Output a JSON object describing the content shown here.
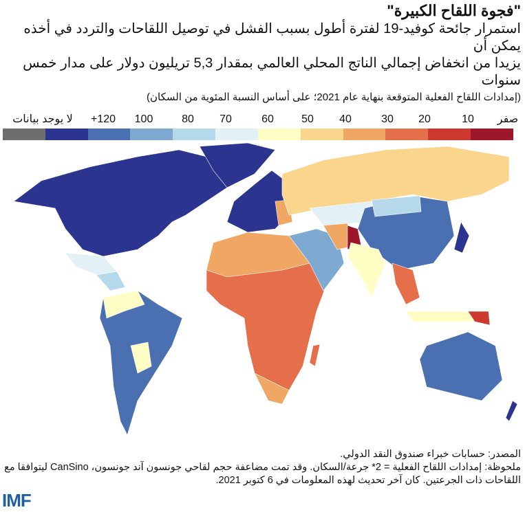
{
  "header": {
    "title": "\"فجوة اللقاح الكبيرة\"",
    "subtitle_line1": "استمرار جائحة كوفيد-19 لفترة أطول بسبب الفشل في توصيل اللقاحات والتردد في أخذه يمكن أن",
    "subtitle_line2": "يزيدا من انخفاض إجمالي الناتج المحلي العالمي بمقدار 5,3 تريليون دولار على مدار خمس سنوات",
    "unit": "(إمدادات اللقاح الفعلية المتوقعة بنهاية عام 2021؛ على أساس النسبة المئوية من السكان)"
  },
  "legend": {
    "labels": [
      "لا يوجد بيانات",
      "+120",
      "100",
      "80",
      "70",
      "60",
      "50",
      "40",
      "30",
      "20",
      "10",
      "صفر"
    ],
    "colors": [
      "#6e6e6e",
      "#2b3590",
      "#4a70b2",
      "#7eaad2",
      "#b5d9ea",
      "#e2f1f6",
      "#fefdc4",
      "#fad68d",
      "#f1a764",
      "#e66f4b",
      "#cd392e",
      "#9e1629"
    ]
  },
  "footer": {
    "source": "المصدر: حسابات خبراء صندوق النقد الدولي.",
    "note_line1": "ملحوظة: إمدادات اللقاح الفعلية = 2* جرعة/السكان. وقد تمت مضاعفة حجم لقاحي جونسون آند جونسون، CanSino ليتوافقا مع",
    "note_line2": "اللقاحات ذات الجرعتين. كان آخر تحديث لهذه المعلومات في 6 كتوبر 2021."
  },
  "logo": "IMF"
}
